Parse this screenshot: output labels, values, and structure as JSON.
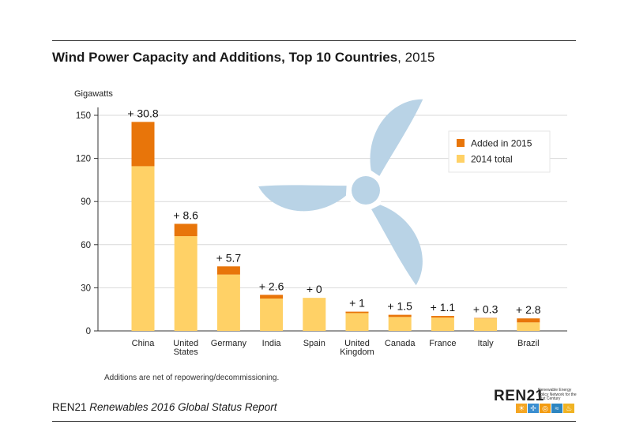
{
  "title": {
    "bold": "Wind Power Capacity and Additions, Top 10 Countries",
    "rest": ", 2015"
  },
  "footnote": "Additions are net of repowering/decommissioning.",
  "source": {
    "org": "REN21",
    "report": "Renewables 2016 Global Status Report"
  },
  "logo": {
    "name": "REN21",
    "tagline": "Renewable Energy Policy Network for the 21st Century",
    "icons": [
      "sun-icon",
      "wind-turbine-icon",
      "bioenergy-icon",
      "hydro-icon",
      "geothermal-icon"
    ]
  },
  "colors": {
    "base": "#FFD166",
    "added": "#E8750A",
    "turbine": "#B9D3E6",
    "grid": "#d9d9d9"
  },
  "chart_data": {
    "type": "bar",
    "stacked": true,
    "ylabel": "Gigawatts",
    "ylim": [
      0,
      150
    ],
    "yticks": [
      0,
      30,
      60,
      90,
      120,
      150
    ],
    "grid": true,
    "legend_position": "top-right",
    "categories": [
      "China",
      "United States",
      "Germany",
      "India",
      "Spain",
      "United Kingdom",
      "Canada",
      "France",
      "Italy",
      "Brazil"
    ],
    "series": [
      {
        "name": "2014 total",
        "color": "#FFD166",
        "values": [
          114.6,
          65.9,
          39.2,
          22.5,
          23.0,
          12.4,
          9.7,
          9.3,
          8.7,
          5.9
        ]
      },
      {
        "name": "Added in 2015",
        "color": "#E8750A",
        "values": [
          30.8,
          8.6,
          5.7,
          2.6,
          0,
          1,
          1.5,
          1.1,
          0.3,
          2.8
        ]
      }
    ],
    "data_labels": [
      "+ 30.8",
      "+ 8.6",
      "+ 5.7",
      "+ 2.6",
      "+ 0",
      "+ 1",
      "+ 1.5",
      "+ 1.1",
      "+ 0.3",
      "+ 2.8"
    ]
  }
}
